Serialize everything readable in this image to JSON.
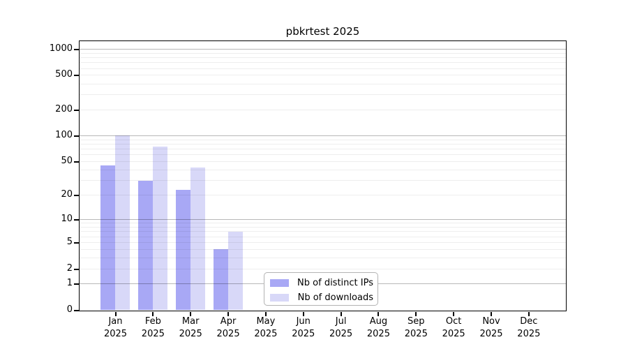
{
  "title": "pbkrtest 2025",
  "chart_data": {
    "type": "bar",
    "title": "pbkrtest 2025",
    "categories": [
      "Jan",
      "Feb",
      "Mar",
      "Apr",
      "May",
      "Jun",
      "Jul",
      "Aug",
      "Sep",
      "Oct",
      "Nov",
      "Dec"
    ],
    "x_year_label": "2025",
    "series": [
      {
        "name": "Nb of distinct IPs",
        "color": "#a8a8f5",
        "values": [
          45,
          30,
          23,
          4,
          0,
          0,
          0,
          0,
          0,
          0,
          0,
          0
        ]
      },
      {
        "name": "Nb of downloads",
        "color": "#d8d8f8",
        "values": [
          102,
          75,
          43,
          7,
          0,
          0,
          0,
          0,
          0,
          0,
          0,
          0
        ]
      }
    ],
    "y_axis": {
      "scale": "log10(1+x)",
      "tick_labels": [
        "0",
        "1",
        "2",
        "5",
        "10",
        "20",
        "50",
        "100",
        "200",
        "500",
        "1000"
      ],
      "tick_values": [
        0,
        1,
        2,
        5,
        10,
        20,
        50,
        100,
        200,
        500,
        1000
      ],
      "major_grid_values": [
        1,
        10,
        100,
        1000
      ],
      "range": [
        0,
        1000
      ]
    },
    "grid": "horizontal major + minor, on top of bars",
    "legend": {
      "position": "bottom-center",
      "entries": [
        "Nb of distinct IPs",
        "Nb of downloads"
      ]
    }
  }
}
